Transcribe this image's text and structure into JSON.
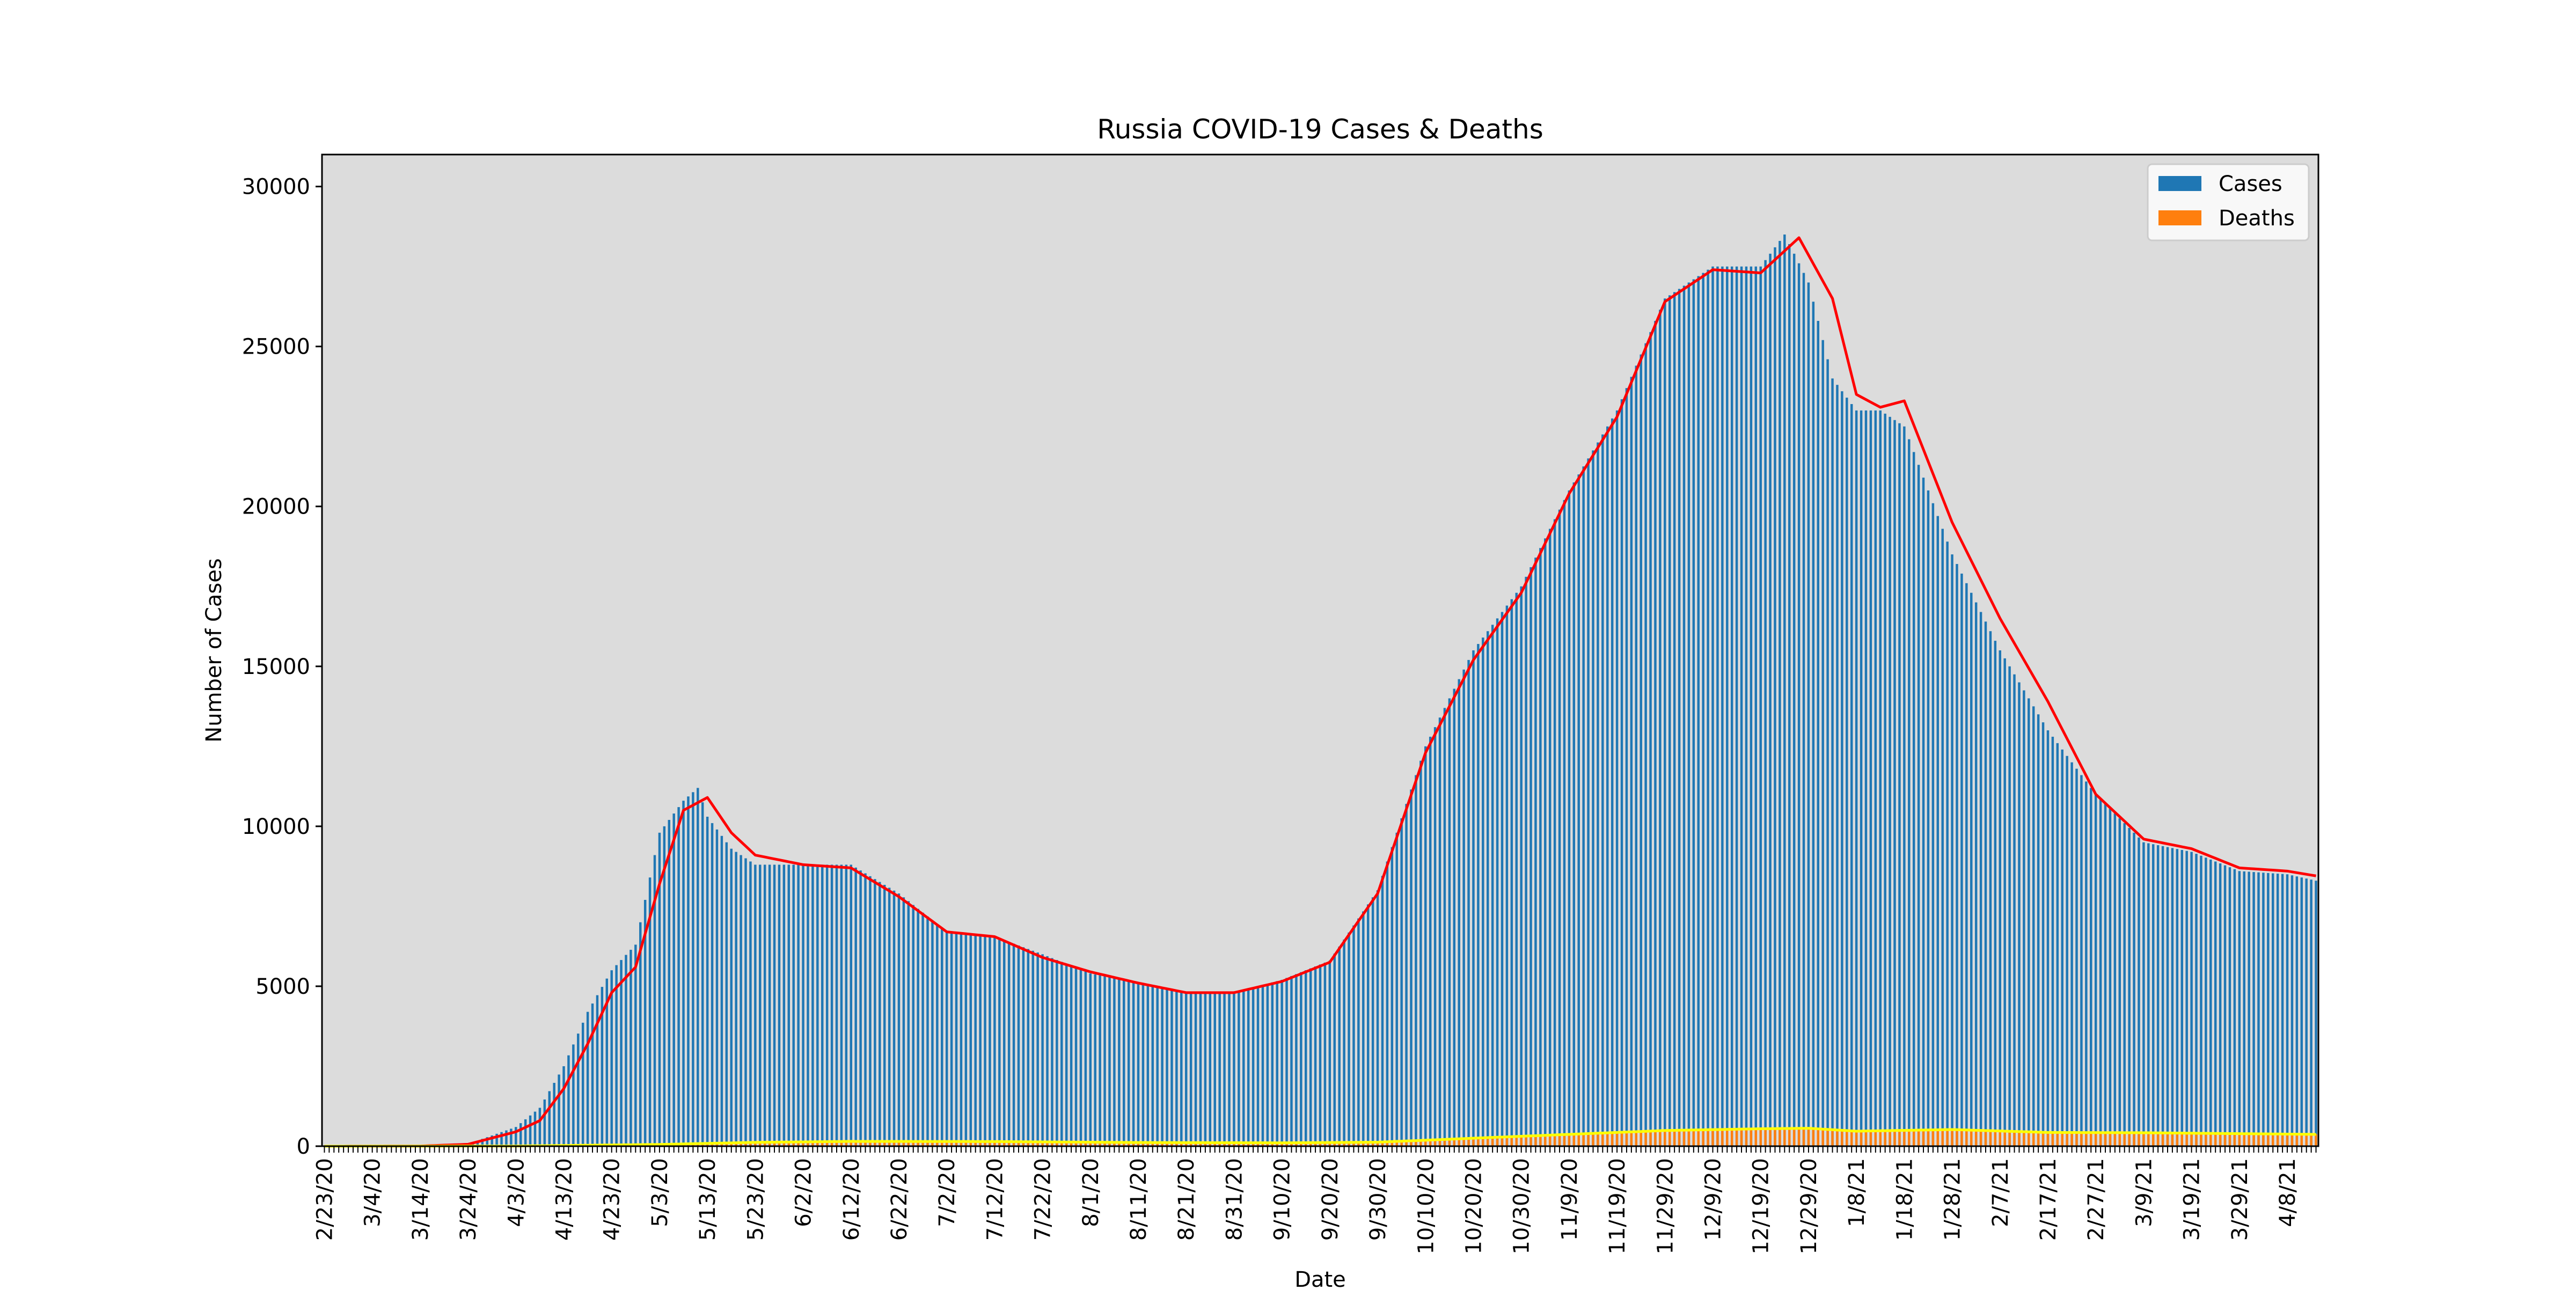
{
  "chart_data": {
    "type": "bar",
    "title": "Russia COVID-19 Cases & Deaths",
    "xlabel": "Date",
    "ylabel": "Number of Cases",
    "ylim": [
      0,
      31000
    ],
    "yticks": [
      0,
      5000,
      10000,
      15000,
      20000,
      25000,
      30000
    ],
    "x_start": "2/23/20",
    "x_end": "4/14/21",
    "xtick_labels": [
      "2/23/20",
      "3/4/20",
      "3/14/20",
      "3/24/20",
      "4/3/20",
      "4/13/20",
      "4/23/20",
      "5/3/20",
      "5/13/20",
      "5/23/20",
      "6/2/20",
      "6/12/20",
      "6/22/20",
      "7/2/20",
      "7/12/20",
      "7/22/20",
      "8/1/20",
      "8/11/20",
      "8/21/20",
      "8/31/20",
      "9/10/20",
      "9/20/20",
      "9/30/20",
      "10/10/20",
      "10/20/20",
      "10/30/20",
      "11/9/20",
      "11/19/20",
      "11/29/20",
      "12/9/20",
      "12/19/20",
      "12/29/20",
      "1/8/21",
      "1/18/21",
      "1/28/21",
      "2/7/21",
      "2/17/21",
      "2/27/21",
      "3/9/21",
      "3/19/21",
      "3/29/21",
      "4/8/21"
    ],
    "grid": false,
    "legend_position": "top-right",
    "background_color": "#dcdcdc",
    "series": [
      {
        "name": "Cases",
        "kind": "bar",
        "color": "#1f77b4",
        "points": [
          [
            "2/23/20",
            0
          ],
          [
            "3/14/20",
            10
          ],
          [
            "3/24/20",
            70
          ],
          [
            "4/3/20",
            600
          ],
          [
            "4/8/20",
            1200
          ],
          [
            "4/13/20",
            2500
          ],
          [
            "4/18/20",
            4200
          ],
          [
            "4/23/20",
            5500
          ],
          [
            "4/28/20",
            6300
          ],
          [
            "5/3/20",
            9800
          ],
          [
            "5/8/20",
            10800
          ],
          [
            "5/11/20",
            11200
          ],
          [
            "5/13/20",
            10300
          ],
          [
            "5/18/20",
            9300
          ],
          [
            "5/23/20",
            8800
          ],
          [
            "6/2/20",
            8800
          ],
          [
            "6/12/20",
            8800
          ],
          [
            "6/22/20",
            7900
          ],
          [
            "7/2/20",
            6700
          ],
          [
            "7/12/20",
            6550
          ],
          [
            "7/22/20",
            6000
          ],
          [
            "8/1/20",
            5400
          ],
          [
            "8/11/20",
            5100
          ],
          [
            "8/21/20",
            4800
          ],
          [
            "8/31/20",
            4800
          ],
          [
            "9/10/20",
            5200
          ],
          [
            "9/20/20",
            5800
          ],
          [
            "9/30/20",
            8000
          ],
          [
            "10/10/20",
            12500
          ],
          [
            "10/20/20",
            15500
          ],
          [
            "10/30/20",
            17500
          ],
          [
            "11/9/20",
            20500
          ],
          [
            "11/19/20",
            23000
          ],
          [
            "11/29/20",
            26500
          ],
          [
            "12/9/20",
            27500
          ],
          [
            "12/19/20",
            27500
          ],
          [
            "12/24/20",
            28500
          ],
          [
            "12/29/20",
            27000
          ],
          [
            "1/3/21",
            24000
          ],
          [
            "1/8/21",
            23000
          ],
          [
            "1/13/21",
            23000
          ],
          [
            "1/18/21",
            22500
          ],
          [
            "1/28/21",
            18500
          ],
          [
            "2/7/21",
            15500
          ],
          [
            "2/17/21",
            13000
          ],
          [
            "2/27/21",
            11000
          ],
          [
            "3/9/21",
            9500
          ],
          [
            "3/19/21",
            9200
          ],
          [
            "3/29/21",
            8600
          ],
          [
            "4/8/21",
            8500
          ],
          [
            "4/14/21",
            8300
          ]
        ]
      },
      {
        "name": "Deaths",
        "kind": "bar",
        "color": "#ff7f0e",
        "points": [
          [
            "2/23/20",
            0
          ],
          [
            "4/3/20",
            5
          ],
          [
            "5/3/20",
            60
          ],
          [
            "5/23/20",
            130
          ],
          [
            "6/12/20",
            160
          ],
          [
            "7/12/20",
            150
          ],
          [
            "8/11/20",
            120
          ],
          [
            "9/10/20",
            110
          ],
          [
            "9/30/20",
            130
          ],
          [
            "10/20/20",
            260
          ],
          [
            "11/9/20",
            380
          ],
          [
            "11/29/20",
            500
          ],
          [
            "12/19/20",
            560
          ],
          [
            "12/29/20",
            570
          ],
          [
            "1/8/21",
            480
          ],
          [
            "1/28/21",
            530
          ],
          [
            "2/17/21",
            440
          ],
          [
            "3/9/21",
            430
          ],
          [
            "4/14/21",
            380
          ]
        ]
      }
    ],
    "overlay_lines": [
      {
        "color": "#ff0000",
        "points": [
          [
            "2/23/20",
            0
          ],
          [
            "3/14/20",
            5
          ],
          [
            "3/24/20",
            60
          ],
          [
            "4/3/20",
            450
          ],
          [
            "4/8/20",
            800
          ],
          [
            "4/13/20",
            1800
          ],
          [
            "4/18/20",
            3200
          ],
          [
            "4/23/20",
            4800
          ],
          [
            "4/28/20",
            5600
          ],
          [
            "5/3/20",
            8200
          ],
          [
            "5/8/20",
            10500
          ],
          [
            "5/13/20",
            10900
          ],
          [
            "5/18/20",
            9800
          ],
          [
            "5/23/20",
            9100
          ],
          [
            "6/2/20",
            8800
          ],
          [
            "6/12/20",
            8700
          ],
          [
            "6/22/20",
            7800
          ],
          [
            "7/2/20",
            6700
          ],
          [
            "7/12/20",
            6550
          ],
          [
            "7/22/20",
            5900
          ],
          [
            "8/1/20",
            5450
          ],
          [
            "8/11/20",
            5100
          ],
          [
            "8/21/20",
            4800
          ],
          [
            "8/31/20",
            4800
          ],
          [
            "9/10/20",
            5150
          ],
          [
            "9/20/20",
            5750
          ],
          [
            "9/30/20",
            7900
          ],
          [
            "10/10/20",
            12300
          ],
          [
            "10/20/20",
            15200
          ],
          [
            "10/30/20",
            17300
          ],
          [
            "11/9/20",
            20400
          ],
          [
            "11/19/20",
            22800
          ],
          [
            "11/29/20",
            26400
          ],
          [
            "12/9/20",
            27400
          ],
          [
            "12/19/20",
            27300
          ],
          [
            "12/27/20",
            28400
          ],
          [
            "1/3/21",
            26500
          ],
          [
            "1/8/21",
            23500
          ],
          [
            "1/13/21",
            23100
          ],
          [
            "1/18/21",
            23300
          ],
          [
            "1/28/21",
            19500
          ],
          [
            "2/7/21",
            16500
          ],
          [
            "2/17/21",
            13900
          ],
          [
            "2/27/21",
            11000
          ],
          [
            "3/9/21",
            9600
          ],
          [
            "3/19/21",
            9300
          ],
          [
            "3/29/21",
            8700
          ],
          [
            "4/8/21",
            8600
          ],
          [
            "4/14/21",
            8450
          ]
        ]
      },
      {
        "color": "#ffff00",
        "points": [
          [
            "2/23/20",
            0
          ],
          [
            "4/3/20",
            5
          ],
          [
            "5/3/20",
            55
          ],
          [
            "5/23/20",
            120
          ],
          [
            "6/12/20",
            150
          ],
          [
            "7/12/20",
            145
          ],
          [
            "8/11/20",
            115
          ],
          [
            "9/10/20",
            105
          ],
          [
            "9/30/20",
            125
          ],
          [
            "10/20/20",
            250
          ],
          [
            "11/9/20",
            370
          ],
          [
            "11/29/20",
            490
          ],
          [
            "12/19/20",
            545
          ],
          [
            "12/29/20",
            560
          ],
          [
            "1/8/21",
            470
          ],
          [
            "1/28/21",
            520
          ],
          [
            "2/17/21",
            430
          ],
          [
            "3/9/21",
            420
          ],
          [
            "4/14/21",
            370
          ]
        ]
      }
    ]
  }
}
